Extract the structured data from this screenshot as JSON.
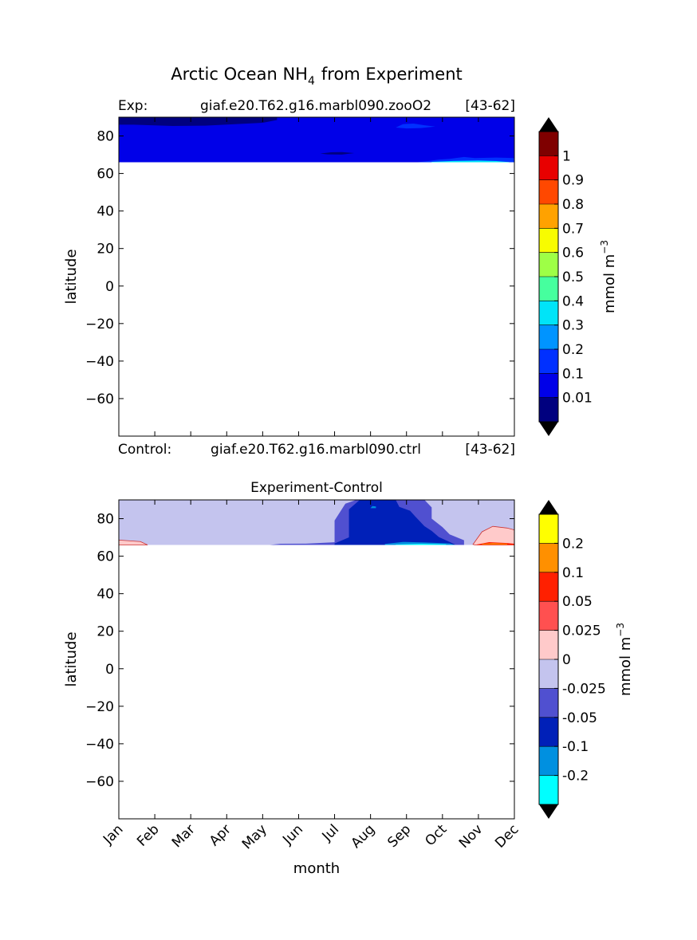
{
  "figure": {
    "title": "Arctic Ocean NH",
    "title_sub": "4",
    "title_suffix": "from Experiment"
  },
  "top": {
    "exp_label": "Exp:",
    "exp_name": "giaf.e20.T62.g16.marbl090.zooO2",
    "exp_years": "[43-62]",
    "ctrl_label": "Control:",
    "ctrl_name": "giaf.e20.T62.g16.marbl090.ctrl",
    "ctrl_years": "[43-62]"
  },
  "bottom": {
    "title": "Experiment-Control"
  },
  "colors": {
    "top_levels": [
      "#00007f",
      "#0000e8",
      "#0030ff",
      "#0094ff",
      "#00e4f8",
      "#46ff9e",
      "#9eff46",
      "#f8fc00",
      "#ffa200",
      "#ff4800",
      "#e80000",
      "#7f0000"
    ],
    "diff_levels": [
      "#00ffff",
      "#0090e0",
      "#0020b8",
      "#5050d0",
      "#c4c4ee",
      "#ffcaca",
      "#ff5050",
      "#ff2000",
      "#ff9000",
      "#ffff00"
    ]
  },
  "chart_data": [
    {
      "type": "heatmap",
      "name": "top-panel",
      "title": "Arctic Ocean NH4 from Experiment",
      "xlabel": "",
      "ylabel": "latitude",
      "x": [
        "Jan",
        "Feb",
        "Mar",
        "Apr",
        "May",
        "Jun",
        "Jul",
        "Aug",
        "Sep",
        "Oct",
        "Nov",
        "Dec"
      ],
      "xlim": [
        0,
        11
      ],
      "ylim": [
        -80,
        90
      ],
      "yticks": [
        80,
        60,
        40,
        20,
        0,
        -20,
        -40,
        -60
      ],
      "ytick_labels": [
        "80",
        "60",
        "40",
        "20",
        "0",
        "−20",
        "−40",
        "−60"
      ],
      "data_lat_range": [
        66,
        90
      ],
      "colorbar": {
        "label": "mmol m",
        "label_sup": "−3",
        "ticks": [
          "1",
          "0.9",
          "0.8",
          "0.7",
          "0.6",
          "0.5",
          "0.4",
          "0.3",
          "0.2",
          "0.1",
          "0.01"
        ],
        "extend": "both"
      },
      "regions": [
        {
          "level": "0.01-0.1",
          "description_value": "background"
        },
        {
          "level": "<0.01",
          "x": [
            0,
            4.4
          ],
          "lat": [
            82,
            90
          ]
        },
        {
          "level": "<0.01",
          "x": [
            5.6,
            6.6
          ],
          "lat": [
            70,
            72
          ]
        },
        {
          "level": "0.1-0.2",
          "x": [
            7.7,
            8.8
          ],
          "lat": [
            82,
            90
          ]
        },
        {
          "level": "0.1-0.2",
          "x": [
            8.5,
            11
          ],
          "lat": [
            66,
            69
          ]
        },
        {
          "level": "0.3-0.4",
          "x": [
            8.7,
            10.8
          ],
          "lat": [
            66,
            67
          ]
        }
      ]
    },
    {
      "type": "heatmap",
      "name": "bottom-panel",
      "title": "Experiment-Control",
      "xlabel": "month",
      "ylabel": "latitude",
      "x": [
        "Jan",
        "Feb",
        "Mar",
        "Apr",
        "May",
        "Jun",
        "Jul",
        "Aug",
        "Sep",
        "Oct",
        "Nov",
        "Dec"
      ],
      "xlim": [
        0,
        11
      ],
      "ylim": [
        -80,
        90
      ],
      "yticks": [
        80,
        60,
        40,
        20,
        0,
        -20,
        -40,
        -60
      ],
      "ytick_labels": [
        "80",
        "60",
        "40",
        "20",
        "0",
        "−20",
        "−40",
        "−60"
      ],
      "data_lat_range": [
        66,
        90
      ],
      "colorbar": {
        "label": "mmol m",
        "label_sup": "−3",
        "ticks": [
          "0.2",
          "0.1",
          "0.05",
          "0.025",
          "0",
          "-0.025",
          "-0.05",
          "-0.1",
          "-0.2"
        ],
        "extend": "both"
      },
      "regions": [
        {
          "level": "-0.025-0",
          "description_value": "background"
        },
        {
          "level": "0-0.025",
          "x": [
            0,
            0.6
          ],
          "lat": [
            66,
            69
          ]
        },
        {
          "level": "-0.05--0.025",
          "x": [
            4.2,
            9.7
          ],
          "lat": [
            66,
            90
          ]
        },
        {
          "level": "-0.1--0.05",
          "x": [
            6.0,
            9.4
          ],
          "lat": [
            66,
            90
          ]
        },
        {
          "level": "-0.2--0.1",
          "x": [
            7.5,
            9.3
          ],
          "lat": [
            66,
            67
          ]
        },
        {
          "level": "0-0.025",
          "x": [
            9.7,
            11
          ],
          "lat": [
            66,
            77
          ]
        },
        {
          "level": "0.05-0.2",
          "x": [
            9.9,
            11
          ],
          "lat": [
            66,
            67
          ]
        }
      ]
    }
  ]
}
